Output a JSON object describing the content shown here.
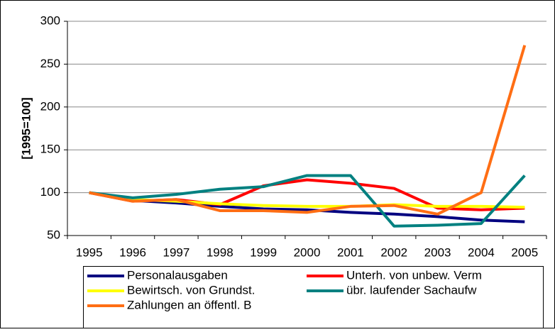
{
  "chart_data": {
    "type": "line",
    "y_label": "[1995=100]",
    "categories": [
      "1995",
      "1996",
      "1997",
      "1998",
      "1999",
      "2000",
      "2001",
      "2002",
      "2003",
      "2004",
      "2005"
    ],
    "series": [
      {
        "name": "Personalausgaben",
        "color": "#000080",
        "values": [
          100,
          91,
          88,
          84,
          81,
          80,
          77,
          75,
          72,
          68,
          66
        ]
      },
      {
        "name": "Unterh. von unbew. Verm",
        "color": "#ff0000",
        "values": [
          100,
          90,
          92,
          86,
          108,
          115,
          111,
          105,
          82,
          80,
          82
        ]
      },
      {
        "name": "Bewirtsch. von Grundst.",
        "color": "#ffff00",
        "values": [
          100,
          92,
          90,
          87,
          85,
          84,
          84,
          86,
          84,
          84,
          83
        ]
      },
      {
        "name": "übr. laufender Sachaufw",
        "color": "#008080",
        "values": [
          100,
          94,
          98,
          104,
          107,
          120,
          120,
          61,
          62,
          64,
          120
        ]
      },
      {
        "name": "Zahlungen an öffentl. B",
        "color": "#ff6e14",
        "values": [
          100,
          90,
          92,
          79,
          79,
          77,
          84,
          85,
          75,
          100,
          272
        ]
      }
    ],
    "ylim": [
      50,
      300
    ],
    "yticks": [
      50,
      100,
      150,
      200,
      250,
      300
    ],
    "grid": true
  }
}
